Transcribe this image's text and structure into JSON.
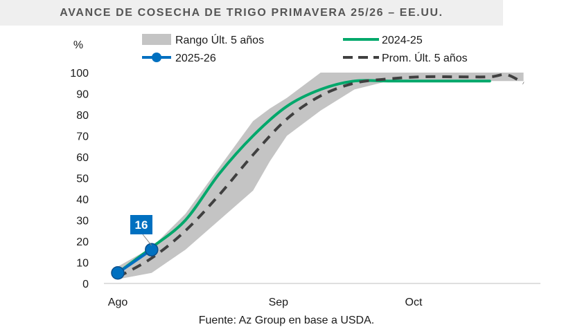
{
  "chart_data": {
    "type": "line",
    "title": "AVANCE DE COSECHA DE TRIGO PRIMAVERA 25/26 – EE.UU.",
    "ylabel": "%",
    "ylim": [
      0,
      100
    ],
    "yticks": [
      0,
      10,
      20,
      30,
      40,
      50,
      60,
      70,
      80,
      90,
      100
    ],
    "xlim": [
      0,
      100
    ],
    "xticks": [
      {
        "label": "Ago",
        "x": 0
      },
      {
        "label": "Sep",
        "x": 38
      },
      {
        "label": "Oct",
        "x": 70
      }
    ],
    "source": "Fuente: Az Group en base a USDA.",
    "range": {
      "name": "Rango Últ. 5 años",
      "color": "#c4c4c4",
      "x": [
        0,
        8,
        16,
        24,
        32,
        36,
        40,
        48,
        56,
        64,
        72,
        80,
        88,
        96
      ],
      "upper": [
        8,
        17,
        33,
        55,
        77,
        83,
        88,
        100,
        100,
        100,
        100,
        100,
        100,
        100
      ],
      "lower": [
        2,
        5,
        16,
        30,
        44,
        58,
        70,
        82,
        92,
        96,
        96,
        96,
        96,
        96
      ]
    },
    "series": [
      {
        "name": "2024-25",
        "style": "solid",
        "color": "#00a86b",
        "x": [
          0,
          4,
          8,
          16,
          24,
          32,
          40,
          48,
          56,
          64,
          72,
          80,
          88
        ],
        "y": [
          5,
          11,
          17,
          30,
          52,
          70,
          84,
          92,
          96,
          96,
          96,
          96,
          96
        ]
      },
      {
        "name": "Prom. Últ. 5 años",
        "style": "dashed",
        "color": "#404040",
        "x": [
          0,
          8,
          16,
          24,
          32,
          40,
          48,
          56,
          64,
          72,
          80,
          88,
          92,
          96
        ],
        "y": [
          3,
          12,
          25,
          42,
          61,
          78,
          89,
          95,
          97,
          98,
          98,
          98,
          99,
          95
        ]
      },
      {
        "name": "2025-26",
        "style": "solid-marker",
        "color": "#0070c0",
        "x": [
          0,
          8
        ],
        "y": [
          5,
          16
        ]
      }
    ],
    "annotations": [
      {
        "text": "16",
        "x": 8,
        "y": 16,
        "series": "2025-26"
      }
    ]
  }
}
